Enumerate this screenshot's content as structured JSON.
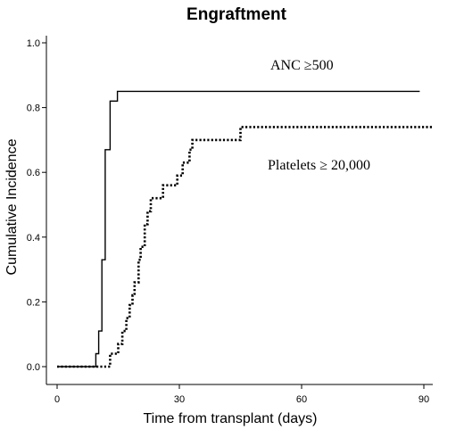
{
  "chart_data": {
    "type": "line",
    "title": "Engraftment",
    "xlabel": "Time from transplant (days)",
    "ylabel": "Cumulative Incidence",
    "xlim": [
      0,
      90
    ],
    "ylim": [
      0,
      1.0
    ],
    "x_ticks": [
      "0",
      "30",
      "60",
      "90"
    ],
    "y_ticks": [
      "0.0",
      "0.2",
      "0.4",
      "0.6",
      "0.8",
      "1.0"
    ],
    "grid": false,
    "series": [
      {
        "name": "ANC ≥500",
        "style": "solid",
        "color": "#000000",
        "points": [
          [
            0,
            0.0
          ],
          [
            9.5,
            0.0
          ],
          [
            9.5,
            0.04
          ],
          [
            10.2,
            0.04
          ],
          [
            10.2,
            0.11
          ],
          [
            11,
            0.11
          ],
          [
            11,
            0.33
          ],
          [
            11.8,
            0.33
          ],
          [
            11.8,
            0.67
          ],
          [
            13,
            0.67
          ],
          [
            13,
            0.82
          ],
          [
            14.8,
            0.82
          ],
          [
            14.8,
            0.85
          ],
          [
            89,
            0.85
          ]
        ]
      },
      {
        "name": "Platelets ≥ 20,000",
        "style": "dotted",
        "color": "#000000",
        "points": [
          [
            0,
            0.0
          ],
          [
            13,
            0.0
          ],
          [
            13,
            0.04
          ],
          [
            15,
            0.04
          ],
          [
            15,
            0.07
          ],
          [
            16,
            0.07
          ],
          [
            16,
            0.11
          ],
          [
            17,
            0.11
          ],
          [
            17,
            0.15
          ],
          [
            17.8,
            0.15
          ],
          [
            17.8,
            0.19
          ],
          [
            18.5,
            0.19
          ],
          [
            18.5,
            0.22
          ],
          [
            19,
            0.22
          ],
          [
            19,
            0.26
          ],
          [
            20,
            0.26
          ],
          [
            20,
            0.33
          ],
          [
            20.5,
            0.33
          ],
          [
            20.5,
            0.37
          ],
          [
            21.5,
            0.37
          ],
          [
            21.5,
            0.44
          ],
          [
            22.2,
            0.44
          ],
          [
            22.2,
            0.48
          ],
          [
            23,
            0.48
          ],
          [
            23,
            0.52
          ],
          [
            26,
            0.52
          ],
          [
            26,
            0.56
          ],
          [
            29.5,
            0.56
          ],
          [
            29.5,
            0.59
          ],
          [
            30.8,
            0.59
          ],
          [
            30.8,
            0.63
          ],
          [
            32.5,
            0.63
          ],
          [
            32.5,
            0.67
          ],
          [
            33.2,
            0.67
          ],
          [
            33.2,
            0.7
          ],
          [
            45,
            0.7
          ],
          [
            45,
            0.74
          ],
          [
            92,
            0.74
          ]
        ]
      }
    ],
    "annotations": [
      {
        "text": "ANC ≥500",
        "series": 0
      },
      {
        "text": "Platelets ≥ 20,000",
        "series": 1
      }
    ]
  }
}
